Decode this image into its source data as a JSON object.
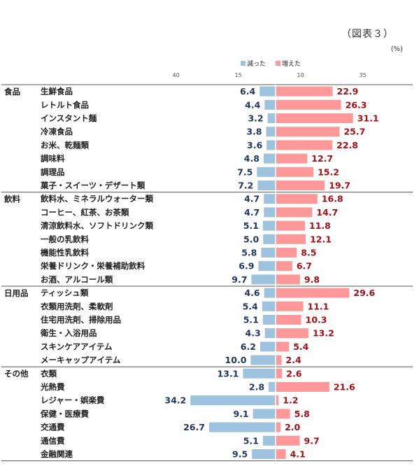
{
  "figure_label": "（図表３）",
  "unit_label": "(%)",
  "colors": {
    "decreased": "#9DC3DE",
    "increased": "#FF9999",
    "decreased_text": "#1F3864",
    "increased_text": "#A50F15"
  },
  "chart_data": {
    "type": "bar",
    "orientation": "horizontal-diverging",
    "legend": [
      {
        "key": "decreased",
        "label": "減った"
      },
      {
        "key": "increased",
        "label": "増えた"
      }
    ],
    "axis_ticks": [
      {
        "label": "40",
        "value": -40
      },
      {
        "label": "15",
        "value": -15
      },
      {
        "label": "10",
        "value": 10
      },
      {
        "label": "35",
        "value": 35
      }
    ],
    "groups": [
      {
        "name": "食品",
        "items": [
          {
            "label": "生鮮食品",
            "decreased": 6.4,
            "increased": 22.9
          },
          {
            "label": "レトルト食品",
            "decreased": 4.4,
            "increased": 26.3
          },
          {
            "label": "インスタント麺",
            "decreased": 3.2,
            "increased": 31.1
          },
          {
            "label": "冷凍食品",
            "decreased": 3.8,
            "increased": 25.7
          },
          {
            "label": "お米、乾麺類",
            "decreased": 3.6,
            "increased": 22.8
          },
          {
            "label": "調味料",
            "decreased": 4.8,
            "increased": 12.7
          },
          {
            "label": "調理品",
            "decreased": 7.5,
            "increased": 15.2
          },
          {
            "label": "菓子・スイーツ・デザート類",
            "decreased": 7.2,
            "increased": 19.7
          }
        ]
      },
      {
        "name": "飲料",
        "items": [
          {
            "label": "飲料水、ミネラルウォーター類",
            "decreased": 4.7,
            "increased": 16.8
          },
          {
            "label": "コーヒー、紅茶、お茶類",
            "decreased": 4.7,
            "increased": 14.7
          },
          {
            "label": "清涼飲料水、ソフトドリンク類",
            "decreased": 5.1,
            "increased": 11.8
          },
          {
            "label": "一般の乳飲料",
            "decreased": 5.0,
            "increased": 12.1
          },
          {
            "label": "機能性乳飲料",
            "decreased": 5.8,
            "increased": 8.5
          },
          {
            "label": "栄養ドリンク・栄養補助飲料",
            "decreased": 6.9,
            "increased": 6.7
          },
          {
            "label": "お酒、アルコール類",
            "decreased": 9.7,
            "increased": 9.8
          }
        ]
      },
      {
        "name": "日用品",
        "items": [
          {
            "label": "ティッシュ類",
            "decreased": 4.6,
            "increased": 29.6
          },
          {
            "label": "衣類用洗剤、柔軟剤",
            "decreased": 5.4,
            "increased": 11.1
          },
          {
            "label": "住宅用洗剤、掃除用品",
            "decreased": 5.1,
            "increased": 10.3
          },
          {
            "label": "衛生・入浴用品",
            "decreased": 4.3,
            "increased": 13.2
          },
          {
            "label": "スキンケアアイテム",
            "decreased": 6.2,
            "increased": 5.4
          },
          {
            "label": "メーキャップアイテム",
            "decreased": 10.0,
            "increased": 2.4
          }
        ]
      },
      {
        "name": "その他",
        "items": [
          {
            "label": "衣類",
            "decreased": 13.1,
            "increased": 2.6
          },
          {
            "label": "光熱費",
            "decreased": 2.8,
            "increased": 21.6
          },
          {
            "label": "レジャー・娯楽費",
            "decreased": 34.2,
            "increased": 1.2
          },
          {
            "label": "保健・医療費",
            "decreased": 9.1,
            "increased": 5.8
          },
          {
            "label": "交通費",
            "decreased": 26.7,
            "increased": 2.0
          },
          {
            "label": "通信費",
            "decreased": 5.1,
            "increased": 9.7
          },
          {
            "label": "金融関連",
            "decreased": 9.5,
            "increased": 4.1
          }
        ]
      }
    ]
  }
}
